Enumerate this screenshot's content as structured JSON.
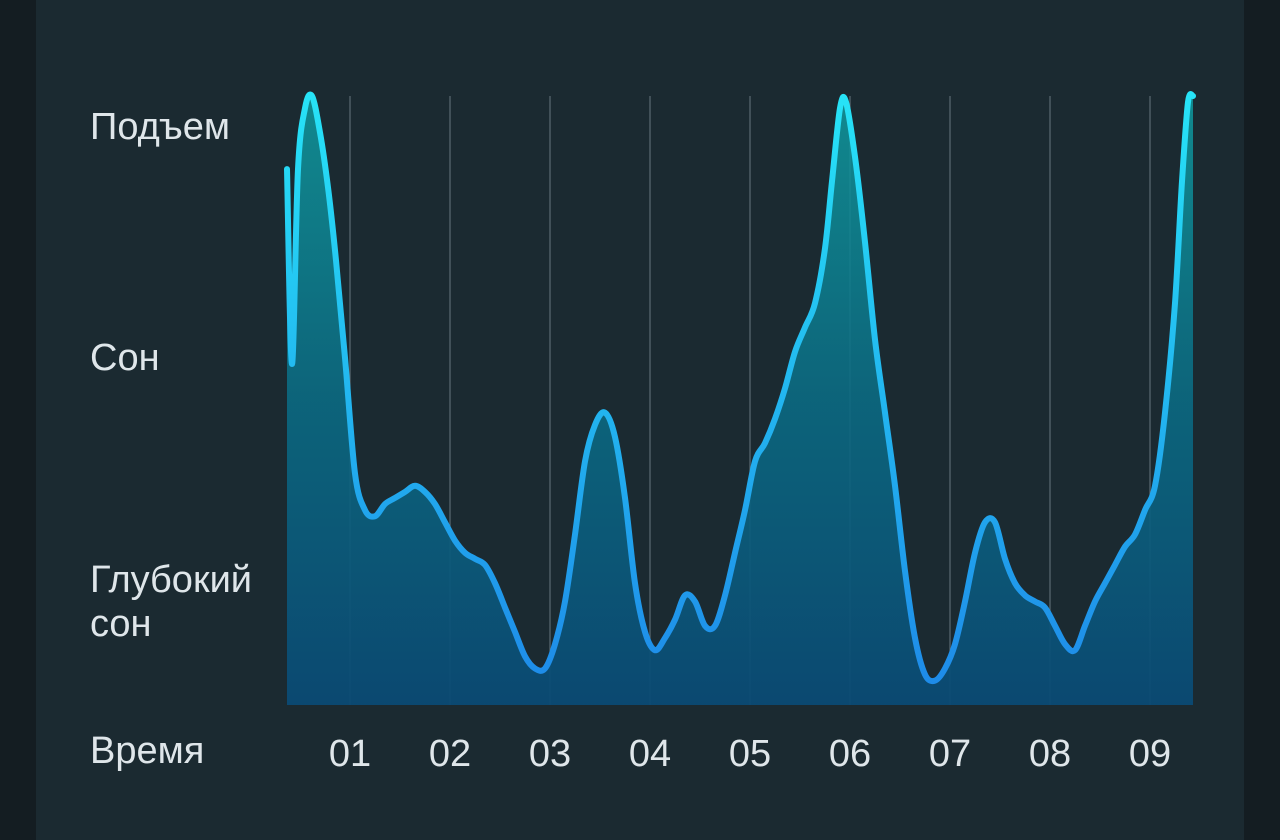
{
  "chart_data": {
    "type": "area",
    "ylabel_levels": [
      "Подъем",
      "Сон",
      "Глубокий\nсон"
    ],
    "xlabel": "Время",
    "x_ticks": [
      "01",
      "02",
      "03",
      "04",
      "05",
      "06",
      "07",
      "08",
      "09"
    ],
    "x_range_hours": [
      0.35,
      9.43
    ],
    "y_range": [
      0,
      1
    ],
    "grid": "vertical lines at each hour",
    "colors": {
      "line_top": "#23d6f5",
      "line_bottom": "#1f8fe6",
      "fill_top": "#0e8a95",
      "fill_bottom": "#0a4f78"
    },
    "series": [
      {
        "points": [
          [
            0.37,
            0.88
          ],
          [
            0.42,
            0.56
          ],
          [
            0.48,
            0.88
          ],
          [
            0.55,
            0.98
          ],
          [
            0.62,
            1.0
          ],
          [
            0.7,
            0.94
          ],
          [
            0.78,
            0.85
          ],
          [
            0.86,
            0.73
          ],
          [
            0.95,
            0.57
          ],
          [
            1.05,
            0.38
          ],
          [
            1.15,
            0.32
          ],
          [
            1.25,
            0.31
          ],
          [
            1.35,
            0.33
          ],
          [
            1.45,
            0.34
          ],
          [
            1.55,
            0.35
          ],
          [
            1.65,
            0.36
          ],
          [
            1.75,
            0.35
          ],
          [
            1.85,
            0.33
          ],
          [
            1.95,
            0.3
          ],
          [
            2.05,
            0.27
          ],
          [
            2.15,
            0.25
          ],
          [
            2.25,
            0.24
          ],
          [
            2.35,
            0.23
          ],
          [
            2.45,
            0.2
          ],
          [
            2.55,
            0.16
          ],
          [
            2.65,
            0.12
          ],
          [
            2.75,
            0.08
          ],
          [
            2.85,
            0.06
          ],
          [
            2.95,
            0.06
          ],
          [
            3.05,
            0.1
          ],
          [
            3.15,
            0.17
          ],
          [
            3.25,
            0.28
          ],
          [
            3.35,
            0.4
          ],
          [
            3.45,
            0.46
          ],
          [
            3.55,
            0.48
          ],
          [
            3.65,
            0.44
          ],
          [
            3.75,
            0.34
          ],
          [
            3.85,
            0.2
          ],
          [
            3.95,
            0.12
          ],
          [
            4.05,
            0.09
          ],
          [
            4.15,
            0.11
          ],
          [
            4.25,
            0.14
          ],
          [
            4.35,
            0.18
          ],
          [
            4.45,
            0.17
          ],
          [
            4.55,
            0.13
          ],
          [
            4.65,
            0.13
          ],
          [
            4.75,
            0.18
          ],
          [
            4.85,
            0.25
          ],
          [
            4.95,
            0.32
          ],
          [
            5.05,
            0.4
          ],
          [
            5.15,
            0.43
          ],
          [
            5.25,
            0.47
          ],
          [
            5.35,
            0.52
          ],
          [
            5.45,
            0.58
          ],
          [
            5.55,
            0.62
          ],
          [
            5.65,
            0.66
          ],
          [
            5.75,
            0.75
          ],
          [
            5.82,
            0.86
          ],
          [
            5.9,
            0.98
          ],
          [
            5.96,
            0.99
          ],
          [
            6.05,
            0.9
          ],
          [
            6.15,
            0.76
          ],
          [
            6.25,
            0.6
          ],
          [
            6.35,
            0.48
          ],
          [
            6.45,
            0.36
          ],
          [
            6.55,
            0.22
          ],
          [
            6.65,
            0.11
          ],
          [
            6.75,
            0.05
          ],
          [
            6.85,
            0.04
          ],
          [
            6.95,
            0.06
          ],
          [
            7.05,
            0.1
          ],
          [
            7.15,
            0.17
          ],
          [
            7.25,
            0.25
          ],
          [
            7.35,
            0.3
          ],
          [
            7.45,
            0.3
          ],
          [
            7.55,
            0.24
          ],
          [
            7.65,
            0.2
          ],
          [
            7.75,
            0.18
          ],
          [
            7.85,
            0.17
          ],
          [
            7.95,
            0.16
          ],
          [
            8.05,
            0.13
          ],
          [
            8.15,
            0.1
          ],
          [
            8.25,
            0.09
          ],
          [
            8.35,
            0.13
          ],
          [
            8.45,
            0.17
          ],
          [
            8.55,
            0.2
          ],
          [
            8.65,
            0.23
          ],
          [
            8.75,
            0.26
          ],
          [
            8.85,
            0.28
          ],
          [
            8.95,
            0.32
          ],
          [
            9.05,
            0.36
          ],
          [
            9.15,
            0.48
          ],
          [
            9.25,
            0.66
          ],
          [
            9.32,
            0.86
          ],
          [
            9.38,
            0.99
          ],
          [
            9.43,
            1.0
          ]
        ]
      }
    ]
  }
}
